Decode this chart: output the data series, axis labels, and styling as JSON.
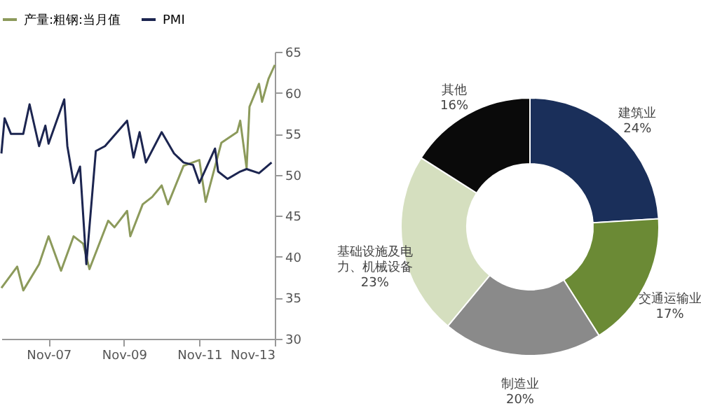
{
  "chart_data": [
    {
      "type": "line",
      "x": [
        "2006-08",
        "2006-09",
        "2006-11",
        "2007-03",
        "2007-05",
        "2007-08",
        "2007-10",
        "2007-11",
        "2008-04",
        "2008-05",
        "2008-07",
        "2008-09",
        "2008-11",
        "2009-02",
        "2009-05",
        "2009-12",
        "2010-02",
        "2010-04",
        "2010-06",
        "2010-11",
        "2011-03",
        "2011-06",
        "2011-09",
        "2011-11",
        "2012-04",
        "2012-05",
        "2012-08",
        "2012-12",
        "2013-02",
        "2013-06",
        "2013-10"
      ],
      "series": [
        {
          "name": "产量:粗钢:当月值",
          "color": "#8c9a5b",
          "x": [
            "2006-08",
            "2007-01",
            "2007-03",
            "2007-08",
            "2007-11",
            "2008-03",
            "2008-07",
            "2008-10",
            "2008-12",
            "2009-06",
            "2009-08",
            "2009-12",
            "2010-01",
            "2010-05",
            "2010-08",
            "2010-11",
            "2011-01",
            "2011-06",
            "2011-11",
            "2012-01",
            "2012-06",
            "2012-11",
            "2012-12",
            "2013-02",
            "2013-03",
            "2013-06",
            "2013-07",
            "2013-09",
            "2013-11"
          ],
          "values": [
            36.2,
            38.8,
            35.9,
            39.1,
            42.5,
            38.3,
            42.5,
            41.6,
            38.5,
            44.4,
            43.6,
            45.6,
            42.5,
            46.4,
            47.3,
            48.7,
            46.4,
            51.1,
            51.8,
            46.7,
            53.9,
            55.2,
            56.6,
            50.8,
            58.3,
            61.1,
            58.9,
            61.7,
            63.4
          ]
        },
        {
          "name": "PMI",
          "color": "#1c2550",
          "values": [
            52.6,
            56.9,
            55,
            55,
            58.6,
            53.5,
            56,
            53.8,
            59.2,
            53.5,
            49,
            51,
            39.1,
            52.9,
            53.5,
            56.6,
            52.1,
            55.2,
            51.5,
            55.2,
            52.6,
            51.5,
            51.2,
            49,
            53.2,
            50.4,
            49.5,
            50.4,
            50.7,
            50.2,
            51.5
          ]
        }
      ],
      "xlim": [
        "2006-08",
        "2013-11"
      ],
      "xticks": [
        {
          "value": "2007-11",
          "label": "Nov-07"
        },
        {
          "value": "2009-11",
          "label": "Nov-09"
        },
        {
          "value": "2011-11",
          "label": "Nov-11"
        },
        {
          "value": "2013-11",
          "label": "Nov-13"
        }
      ],
      "ylim": [
        30,
        65
      ],
      "yticks": [
        30,
        35,
        40,
        45,
        50,
        55,
        60,
        65
      ],
      "legend": "top"
    },
    {
      "type": "donut",
      "categories": [
        "建筑业",
        "交通运输业",
        "制造业",
        "基础设施及电力、机械设备",
        "其他"
      ],
      "values": [
        24,
        17,
        20,
        23,
        16
      ],
      "value_labels": [
        "24%",
        "17%",
        "20%",
        "23%",
        "16%"
      ],
      "colors": [
        "#1a2f5a",
        "#6b8a35",
        "#8a8a8a",
        "#d5dfbf",
        "#0a0a0a"
      ]
    }
  ]
}
